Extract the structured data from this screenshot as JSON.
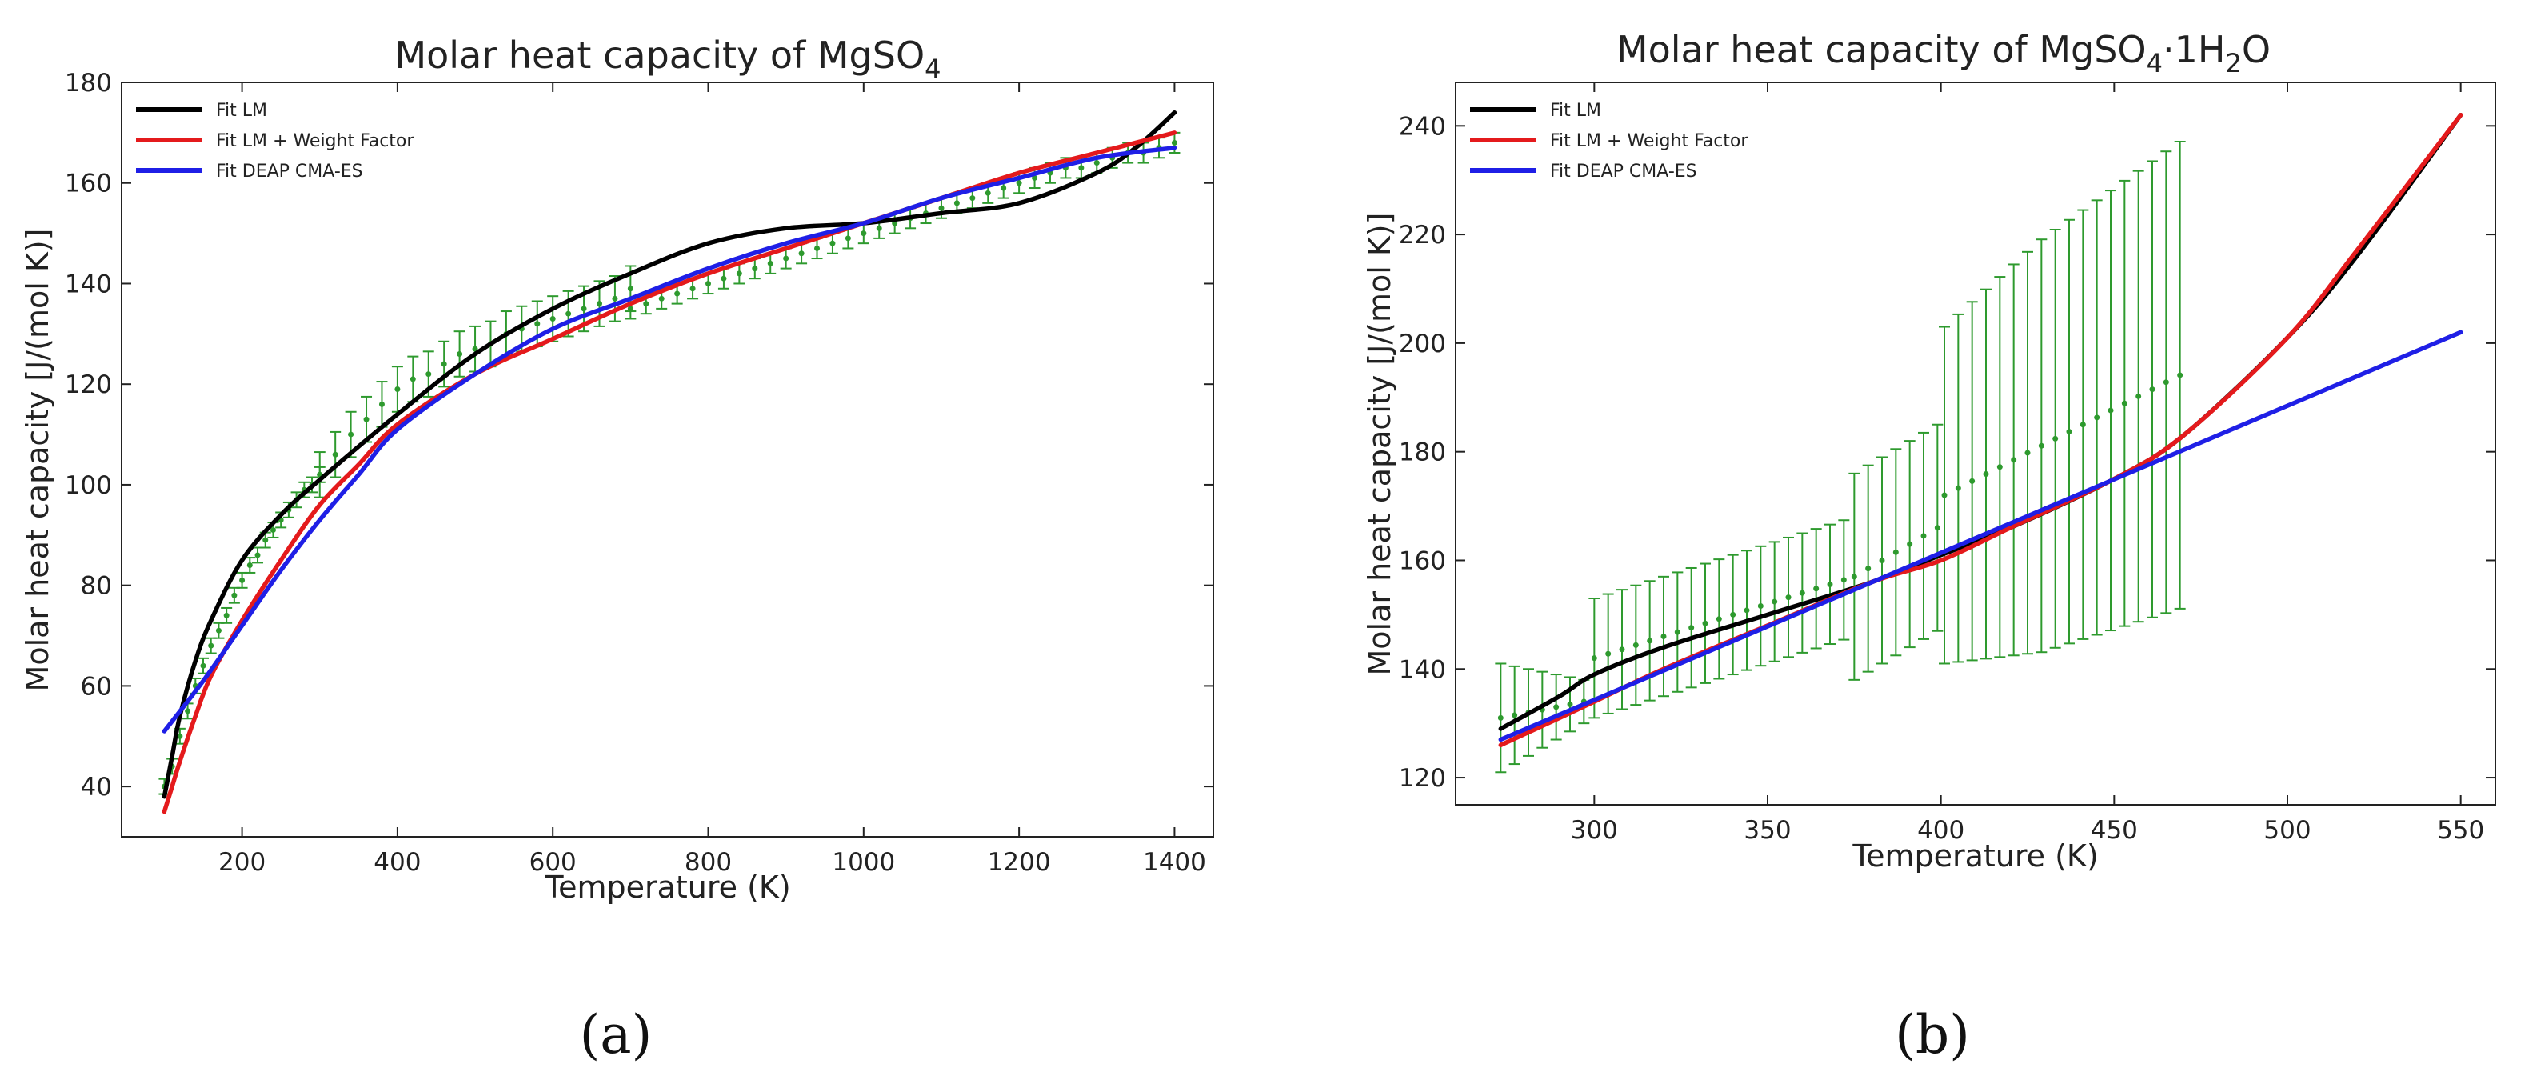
{
  "panel_labels": {
    "a": "(a)",
    "b": "(b)"
  },
  "chart_data": [
    {
      "id": "a",
      "type": "line",
      "title": "Molar heat capacity of MgSO",
      "title_sub": "4",
      "xlabel": "Temperature (K)",
      "ylabel": "Molar heat capacity [J/(mol K)]",
      "xlim": [
        45,
        1450
      ],
      "ylim": [
        30,
        180
      ],
      "xticks": [
        200,
        400,
        600,
        800,
        1000,
        1200,
        1400
      ],
      "yticks": [
        40,
        60,
        80,
        100,
        120,
        140,
        160,
        180
      ],
      "legend_position": "top-left",
      "series": [
        {
          "name": "Fit LM",
          "color": "#000000",
          "x": [
            100,
            110,
            120,
            140,
            160,
            200,
            250,
            300,
            400,
            500,
            600,
            700,
            800,
            900,
            1000,
            1100,
            1200,
            1300,
            1350,
            1400
          ],
          "y": [
            38,
            46,
            54,
            65,
            73,
            85,
            94,
            101,
            114,
            126,
            135,
            142,
            148,
            151,
            152,
            154,
            156,
            162,
            167,
            174
          ]
        },
        {
          "name": "Fit LM + Weight Factor",
          "color": "#e41a1c",
          "x": [
            100,
            110,
            120,
            140,
            160,
            200,
            250,
            300,
            350,
            400,
            500,
            600,
            700,
            800,
            900,
            1000,
            1100,
            1200,
            1300,
            1400
          ],
          "y": [
            35,
            40,
            45,
            54,
            62,
            73,
            85,
            96,
            104,
            112,
            122,
            129,
            136,
            142,
            147,
            152,
            157,
            162,
            166,
            170
          ]
        },
        {
          "name": "Fit DEAP CMA-ES",
          "color": "#1f1fe6",
          "x": [
            100,
            150,
            200,
            250,
            300,
            350,
            400,
            500,
            600,
            700,
            800,
            900,
            1000,
            1100,
            1200,
            1300,
            1400
          ],
          "y": [
            51,
            61,
            72,
            83,
            93,
            102,
            111,
            122,
            131,
            137,
            143,
            148,
            152,
            157,
            161,
            165,
            167
          ]
        }
      ],
      "errorbars": {
        "color": "#2e9a2e",
        "segments": [
          {
            "x0": 100,
            "x1": 300,
            "step": 10,
            "ys": [
              40,
              44,
              50,
              55,
              60,
              64,
              68,
              71,
              74,
              78,
              81,
              84,
              86,
              89,
              91,
              93,
              95,
              97,
              99,
              100,
              102
            ],
            "err": 1.5
          },
          {
            "x0": 300,
            "x1": 700,
            "step": 20,
            "ys": [
              102,
              106,
              110,
              113,
              116,
              119,
              121,
              122,
              124,
              126,
              127,
              128,
              130,
              131,
              132,
              133,
              134,
              135,
              136,
              137,
              139
            ],
            "err": 4.5
          },
          {
            "x0": 700,
            "x1": 1400,
            "step": 20,
            "ys": [
              135,
              136,
              137,
              138,
              139,
              140,
              141,
              142,
              143,
              144,
              145,
              146,
              147,
              148,
              149,
              150,
              151,
              152,
              153,
              154,
              155,
              156,
              157,
              158,
              159,
              160,
              161,
              162,
              163,
              163,
              164,
              165,
              166,
              166,
              167,
              168
            ],
            "err": 2.0
          }
        ]
      }
    },
    {
      "id": "b",
      "type": "line",
      "title": "Molar heat capacity of MgSO",
      "title_sub": "4",
      "title_mid": "·1H",
      "title_sub2": "2",
      "title_end": "O",
      "xlabel": "Temperature (K)",
      "ylabel": "Molar heat capacity [J/(mol K)]",
      "xlim": [
        260,
        560
      ],
      "ylim": [
        115,
        248
      ],
      "xticks": [
        300,
        350,
        400,
        450,
        500,
        550
      ],
      "yticks": [
        120,
        140,
        160,
        180,
        200,
        220,
        240
      ],
      "legend_position": "top-left",
      "series": [
        {
          "name": "Fit LM",
          "color": "#000000",
          "x": [
            273,
            290,
            300,
            320,
            350,
            380,
            400,
            420,
            450,
            470,
            500,
            520,
            550
          ],
          "y": [
            129,
            135,
            139,
            144,
            150,
            156,
            161,
            166,
            175,
            183,
            201,
            216,
            242
          ]
        },
        {
          "name": "Fit LM + Weight Factor",
          "color": "#e41a1c",
          "x": [
            273,
            290,
            300,
            320,
            350,
            380,
            400,
            420,
            450,
            470,
            500,
            520,
            550
          ],
          "y": [
            126,
            131,
            134,
            140,
            148,
            156,
            160,
            166,
            175,
            183,
            201,
            217,
            242
          ]
        },
        {
          "name": "Fit DEAP CMA-ES",
          "color": "#1f1fe6",
          "x": [
            273,
            550
          ],
          "y": [
            127,
            202
          ]
        }
      ],
      "errorbars": {
        "color": "#2e9a2e",
        "segments": [
          {
            "x0": 273,
            "x1": 298,
            "step": 4,
            "ys": [
              131,
              131.5,
              132,
              132.5,
              133,
              133.5,
              134
            ],
            "err": [
              10,
              9,
              8,
              7,
              6,
              5,
              4
            ]
          },
          {
            "x0": 300,
            "x1": 374,
            "step": 4,
            "ys": [
              142,
              142.8,
              143.6,
              144.4,
              145.2,
              146,
              146.8,
              147.6,
              148.4,
              149.2,
              150,
              150.8,
              151.6,
              152.4,
              153.2,
              154,
              154.8,
              155.6,
              156.4
            ],
            "err": 11
          },
          {
            "x0": 375,
            "x1": 400,
            "step": 4,
            "ys": [
              157,
              158.5,
              160,
              161.5,
              163,
              164.5,
              166
            ],
            "err": 19
          },
          {
            "x0": 401,
            "x1": 472,
            "step": 4,
            "ys": [
              172,
              173.3,
              174.6,
              175.9,
              177.2,
              178.5,
              179.8,
              181.1,
              182.4,
              183.7,
              185,
              186.3,
              187.6,
              188.9,
              190.2,
              191.5,
              192.8,
              194.1
            ],
            "err": [
              31,
              32,
              33,
              34,
              35,
              36,
              37,
              38,
              38.5,
              39,
              39.5,
              40,
              40.5,
              41,
              41.5,
              42,
              42.5,
              43
            ]
          }
        ]
      }
    }
  ]
}
